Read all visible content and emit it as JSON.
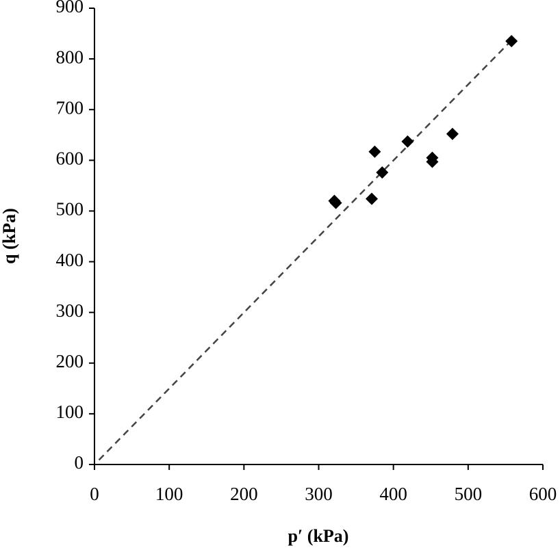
{
  "chart_data": {
    "type": "scatter",
    "xlabel": "p′ (kPa)",
    "ylabel": "q (kPa)",
    "x": [
      321,
      323,
      375,
      371,
      385,
      419,
      452,
      452,
      479,
      558
    ],
    "y": [
      520,
      516,
      617,
      524,
      576,
      637,
      605,
      597,
      652,
      835
    ],
    "color": "#000000",
    "trend": {
      "x": [
        6,
        557
      ],
      "y": [
        9,
        835
      ],
      "color": "#444444",
      "dashed": true
    },
    "xlim": [
      0,
      600
    ],
    "xticks": [
      0,
      100,
      200,
      300,
      400,
      500,
      600
    ],
    "ylim": [
      0,
      900
    ],
    "yticks": [
      0,
      100,
      200,
      300,
      400,
      500,
      600,
      700,
      800,
      900
    ],
    "grid": false
  }
}
